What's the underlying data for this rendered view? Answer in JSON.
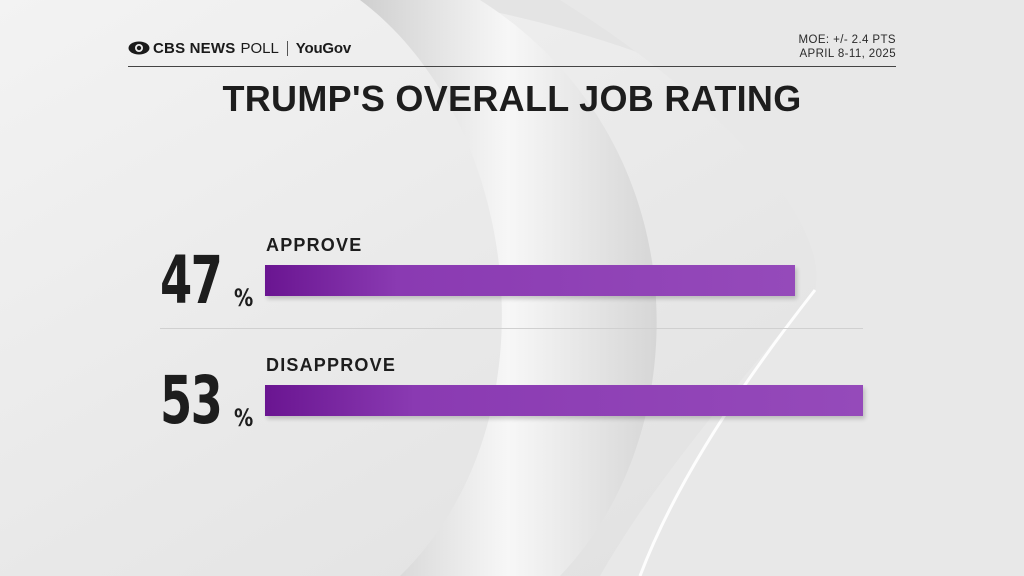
{
  "header": {
    "logo_cbs": "CBS NEWS",
    "logo_poll": "POLL",
    "logo_partner": "YouGov",
    "moe": "MOE: +/- 2.4 PTS",
    "dates": "APRIL 8-11, 2025"
  },
  "chart_data": {
    "type": "bar",
    "orientation": "horizontal",
    "title": "TRUMP'S OVERALL JOB RATING",
    "categories": [
      "APPROVE",
      "DISAPPROVE"
    ],
    "values": [
      47,
      53
    ],
    "value_labels": [
      "47",
      "53"
    ],
    "unit": "%",
    "xlim": [
      0,
      53
    ],
    "grid": false,
    "bar_color": "#8a3ab2"
  }
}
